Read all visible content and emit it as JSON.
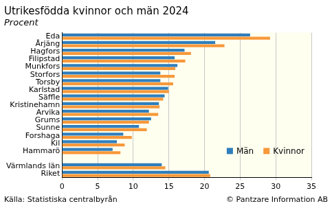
{
  "chart_data": {
    "type": "bar",
    "orientation": "horizontal",
    "title": "Utrikesfödda kvinnor och män 2024",
    "subtitle": "Procent",
    "source": "Källa: Statistiska centralbyrån",
    "copyright": "© Pantzare Information AB",
    "categories": [
      "Eda",
      "Årjäng",
      "Hagfors",
      "Filipstad",
      "Munkfors",
      "Storfors",
      "Torsby",
      "Karlstad",
      "Säffle",
      "Kristinehamn",
      "Arvika",
      "Grums",
      "Sunne",
      "Forshaga",
      "Kil",
      "Hammarö",
      null,
      "Värmlands län",
      "Riket"
    ],
    "series": [
      {
        "name": "Män",
        "color": "#2f7ebc",
        "values": [
          26.4,
          21.5,
          17.2,
          15.8,
          16.2,
          13.8,
          13.8,
          14.9,
          14.4,
          13.6,
          12.2,
          12.5,
          10.8,
          8.6,
          7.7,
          7.1,
          null,
          14.0,
          20.6
        ]
      },
      {
        "name": "Kvinnor",
        "color": "#f7983a",
        "values": [
          29.2,
          22.8,
          18.1,
          17.3,
          15.9,
          15.8,
          15.6,
          15.0,
          14.2,
          13.7,
          13.5,
          12.2,
          11.9,
          9.8,
          8.8,
          8.2,
          null,
          14.5,
          20.8
        ]
      }
    ],
    "xlim": [
      0,
      35
    ],
    "xticks": [
      0,
      5,
      10,
      15,
      20,
      25,
      30,
      35
    ],
    "grid": true,
    "legend": "lower right"
  }
}
